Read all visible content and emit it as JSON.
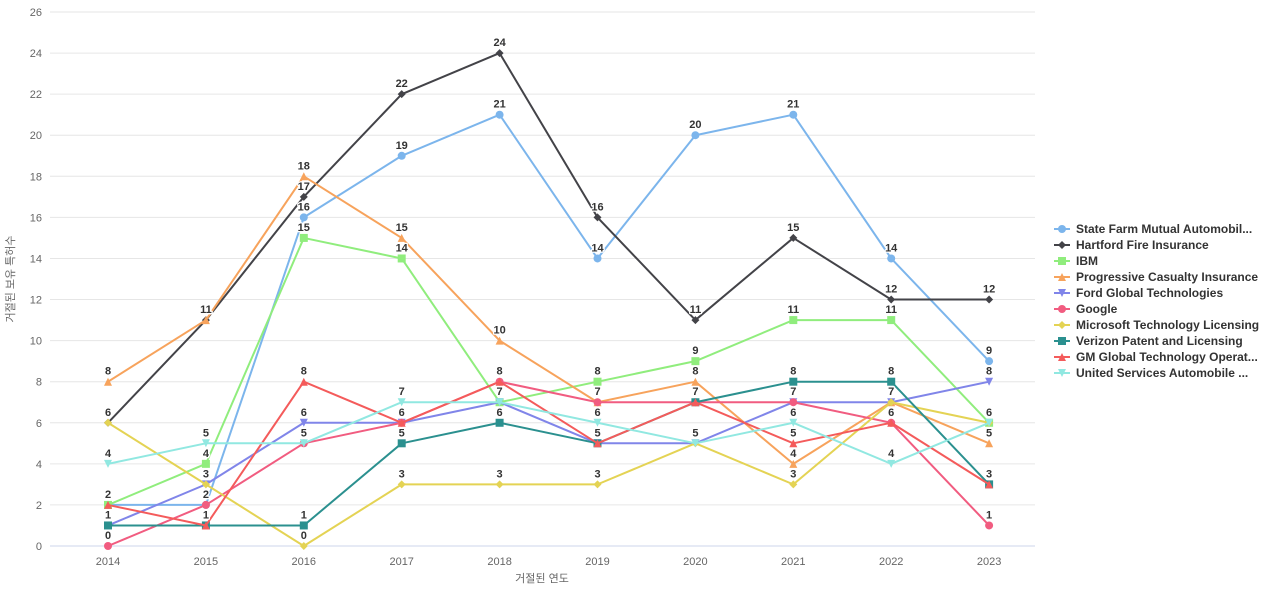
{
  "chart_data": {
    "type": "line",
    "x": [
      2014,
      2015,
      2016,
      2017,
      2018,
      2019,
      2020,
      2021,
      2022,
      2023
    ],
    "xlabel": "거절된 연도",
    "ylabel": "거절된 보유 특허수",
    "ylim": [
      0,
      26
    ],
    "ytick_step": 2,
    "grid": true,
    "legend_position": "right",
    "data_labels": true,
    "series": [
      {
        "name": "State Farm Mutual Automobil...",
        "slug": "state-farm",
        "color": "#7cb5ec",
        "marker": "circle",
        "values": [
          2,
          2,
          16,
          19,
          21,
          14,
          20,
          21,
          14,
          9
        ]
      },
      {
        "name": "Hartford Fire Insurance",
        "slug": "hartford",
        "color": "#434348",
        "marker": "diamond",
        "values": [
          6,
          11,
          17,
          22,
          24,
          16,
          11,
          15,
          12,
          12
        ]
      },
      {
        "name": "IBM",
        "slug": "ibm",
        "color": "#90ed7d",
        "marker": "square",
        "values": [
          2,
          4,
          15,
          14,
          7,
          8,
          9,
          11,
          11,
          6
        ]
      },
      {
        "name": "Progressive Casualty Insurance",
        "slug": "progressive",
        "color": "#f7a35c",
        "marker": "triangle",
        "values": [
          8,
          11,
          18,
          15,
          10,
          7,
          8,
          4,
          7,
          5
        ]
      },
      {
        "name": "Ford Global Technologies",
        "slug": "ford",
        "color": "#8085e9",
        "marker": "triangle-down",
        "values": [
          1,
          3,
          6,
          6,
          7,
          5,
          5,
          7,
          7,
          8
        ]
      },
      {
        "name": "Google",
        "slug": "google",
        "color": "#f15c80",
        "marker": "circle",
        "values": [
          0,
          2,
          5,
          6,
          8,
          7,
          7,
          7,
          6,
          1
        ]
      },
      {
        "name": "Microsoft Technology Licensing",
        "slug": "microsoft",
        "color": "#e4d354",
        "marker": "diamond",
        "values": [
          6,
          3,
          0,
          3,
          3,
          3,
          5,
          3,
          7,
          6
        ]
      },
      {
        "name": "Verizon Patent and Licensing",
        "slug": "verizon",
        "color": "#2b908f",
        "marker": "square",
        "values": [
          1,
          1,
          1,
          5,
          6,
          5,
          7,
          8,
          8,
          3
        ]
      },
      {
        "name": "GM Global Technology Operat...",
        "slug": "gm",
        "color": "#f45b5b",
        "marker": "triangle",
        "values": [
          2,
          1,
          8,
          6,
          8,
          5,
          7,
          5,
          6,
          3
        ]
      },
      {
        "name": "United Services Automobile ...",
        "slug": "usaa",
        "color": "#91e8e1",
        "marker": "triangle-down",
        "values": [
          4,
          5,
          5,
          7,
          7,
          6,
          5,
          6,
          4,
          6
        ]
      }
    ]
  }
}
